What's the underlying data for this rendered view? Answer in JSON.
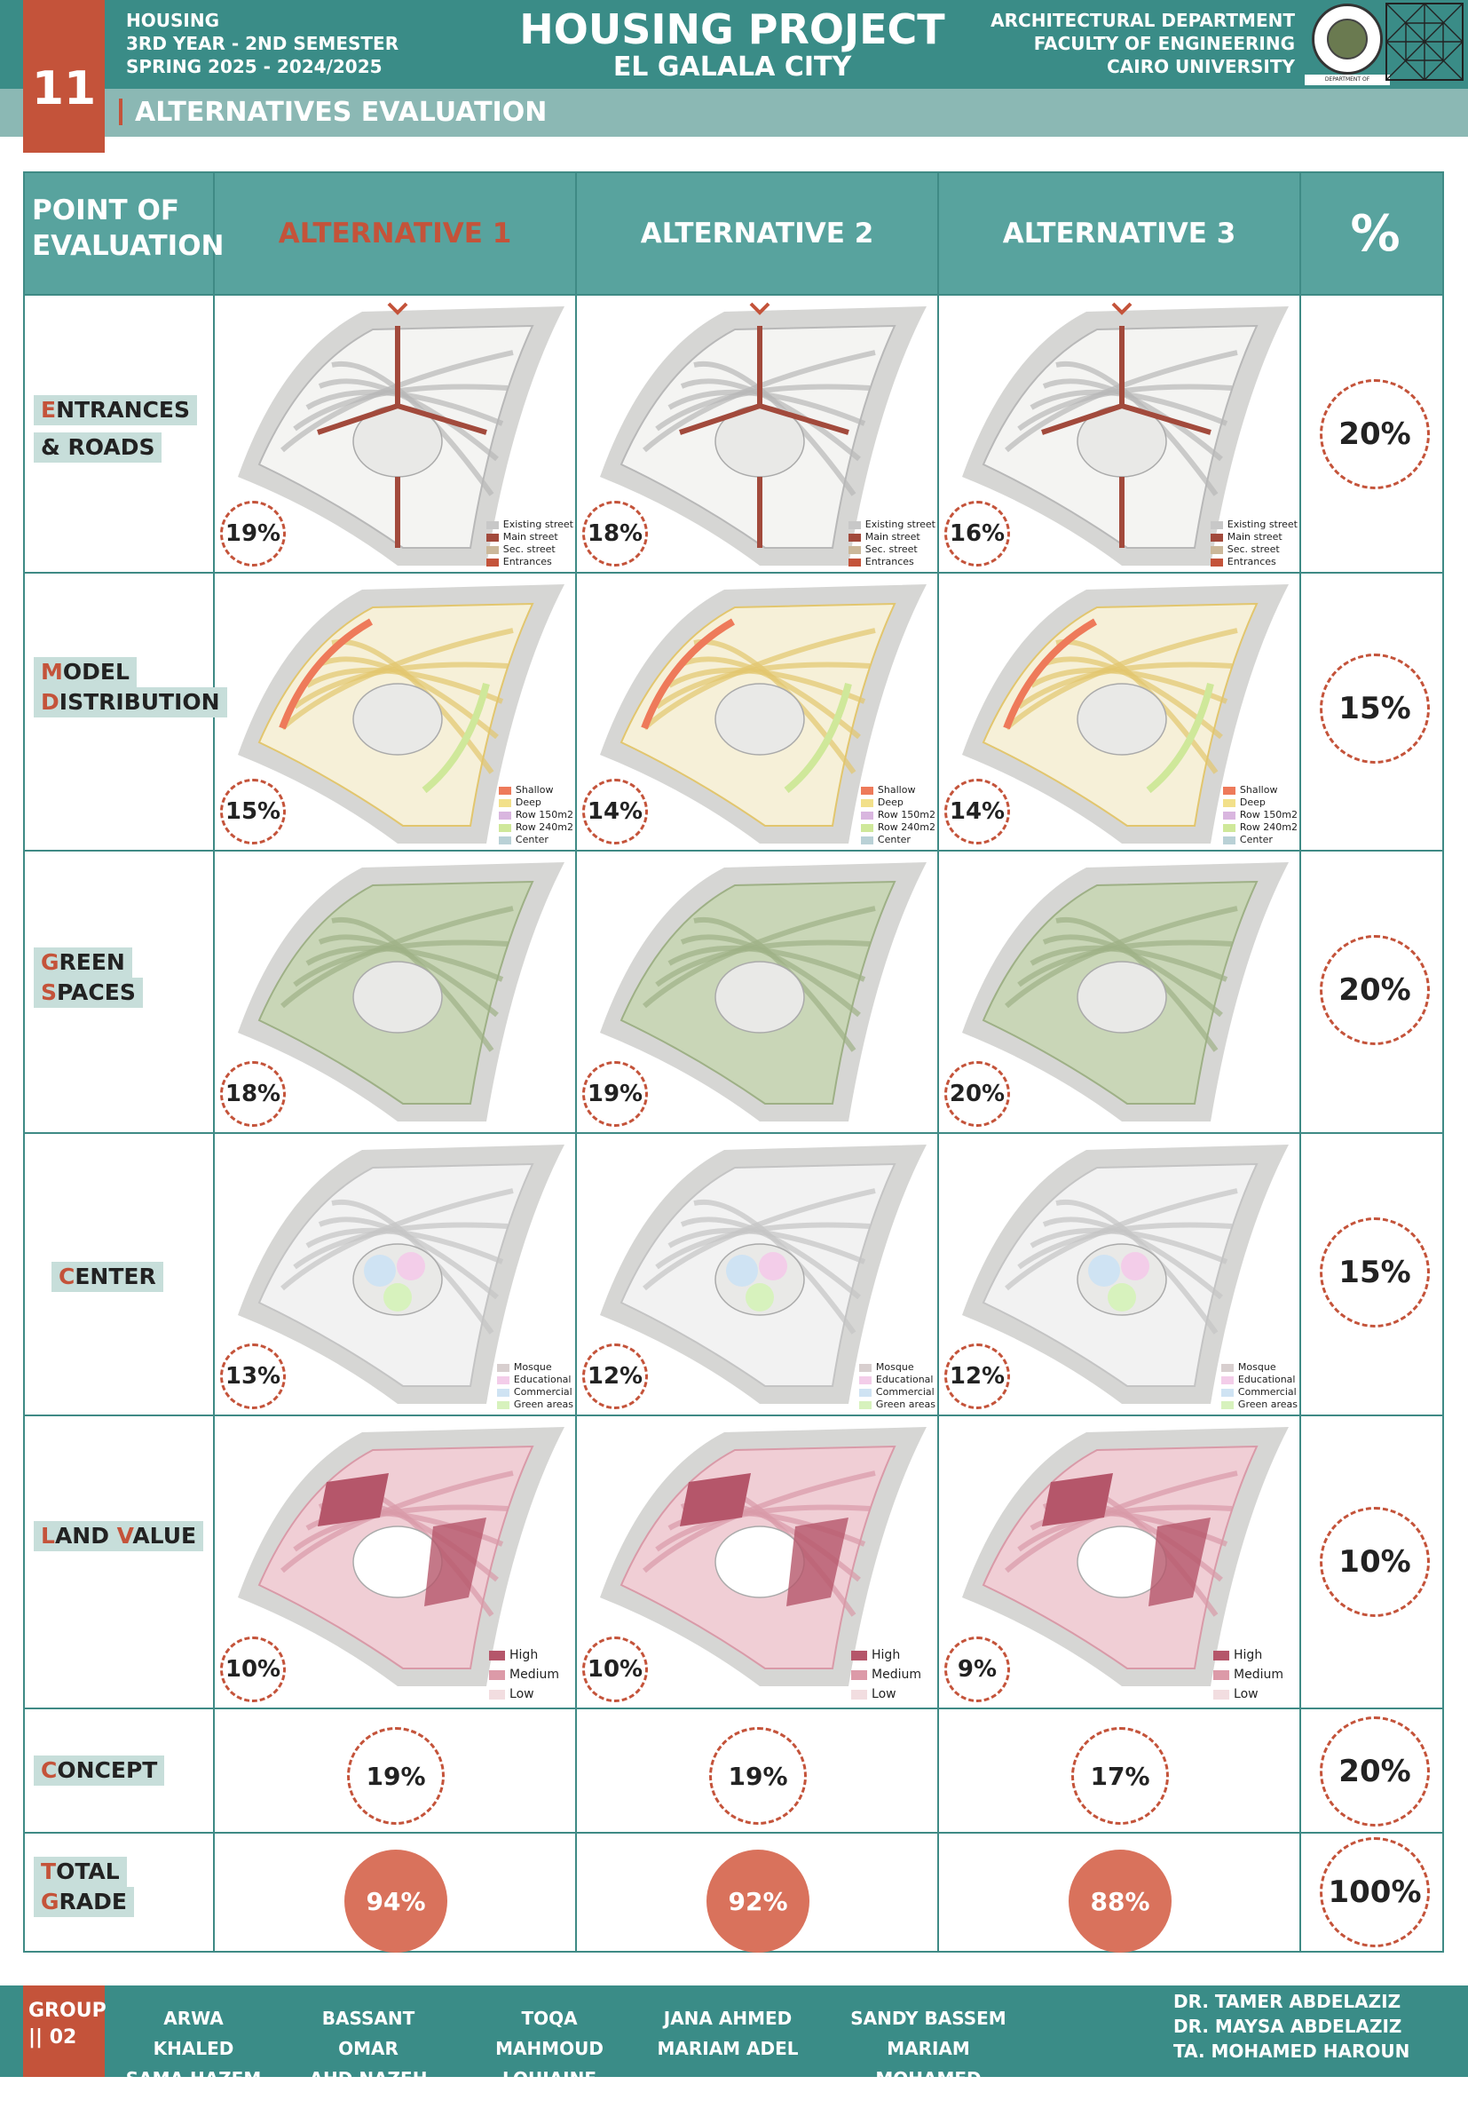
{
  "header": {
    "sheet_number": "11",
    "left_lines": [
      "HOUSING",
      "3RD YEAR - 2ND SEMESTER",
      "SPRING 2025 - 2024/2025"
    ],
    "title": "HOUSING PROJECT",
    "subtitle": "EL GALALA CITY",
    "right_lines": [
      "ARCHITECTURAL DEPARTMENT",
      "FACULTY OF ENGINEERING",
      "CAIRO UNIVERSITY"
    ],
    "logo_caption": "DEPARTMENT OF ARCHITECTURE",
    "section_title": "ALTERNATIVES EVALUATION"
  },
  "table": {
    "header": {
      "point_line1": "POINT OF",
      "point_line2": "EVALUATION",
      "alt1": "ALTERNATIVE 1",
      "alt2": "ALTERNATIVE 2",
      "alt3": "ALTERNATIVE 3",
      "pct": "%"
    },
    "rows": [
      {
        "label1_first": "E",
        "label1_rest": "NTRANCES",
        "label2_first": "& R",
        "label2_rest": "OADS",
        "scores": [
          "19%",
          "18%",
          "16%"
        ],
        "weight": "20%",
        "legend": [
          "Existing street",
          "Main street",
          "Sec. street",
          "Entrances"
        ]
      },
      {
        "label1_first": "M",
        "label1_rest": "ODEL",
        "label2_first": "D",
        "label2_rest": "ISTRIBUTION",
        "scores": [
          "15%",
          "14%",
          "14%"
        ],
        "weight": "15%",
        "legend": [
          "Shallow",
          "Deep",
          "Row 150m2",
          "Row 240m2",
          "Center"
        ]
      },
      {
        "label1_first": "G",
        "label1_rest": "REEN",
        "label2_first": "S",
        "label2_rest": "PACES",
        "scores": [
          "18%",
          "19%",
          "20%"
        ],
        "weight": "20%"
      },
      {
        "label1_first": "C",
        "label1_rest": "ENTER",
        "scores": [
          "13%",
          "12%",
          "12%"
        ],
        "weight": "15%",
        "legend": [
          "Mosque",
          "Educational",
          "Commercial",
          "Green areas"
        ]
      },
      {
        "label1_first": "L",
        "label1_rest": "AND ",
        "label1_first2": "V",
        "label1_rest2": "ALUE",
        "scores": [
          "10%",
          "10%",
          "9%"
        ],
        "weight": "10%",
        "legend": [
          "High",
          "Medium",
          "Low"
        ]
      },
      {
        "label1_first": "C",
        "label1_rest": "ONCEPT",
        "scores": [
          "19%",
          "19%",
          "17%"
        ],
        "weight": "20%"
      },
      {
        "label1_first": "T",
        "label1_rest": "OTAL",
        "label2_first": "G",
        "label2_rest": "RADE",
        "scores": [
          "94%",
          "92%",
          "88%"
        ],
        "weight": "100%"
      }
    ]
  },
  "footer": {
    "group_line1": "GROUP",
    "group_line2": "|| 02",
    "students": [
      [
        "ARWA KHALED",
        "SAMA HAZEM"
      ],
      [
        "BASSANT OMAR",
        "AHD NAZEH"
      ],
      [
        "TOQA MAHMOUD",
        "LOUJAINE AHMED"
      ],
      [
        "JANA AHMED",
        "MARIAM ADEL"
      ],
      [
        "SANDY BASSEM",
        "MARIAM MOHAMED"
      ]
    ],
    "supervisors": [
      "DR. TAMER ABDELAZIZ",
      "DR. MAYSA ABDELAZIZ",
      "TA. MOHAMED HAROUN"
    ]
  },
  "colors": {
    "teal": "#3a8c87",
    "red": "#c4533a",
    "light_teal": "#8bb8b4"
  }
}
